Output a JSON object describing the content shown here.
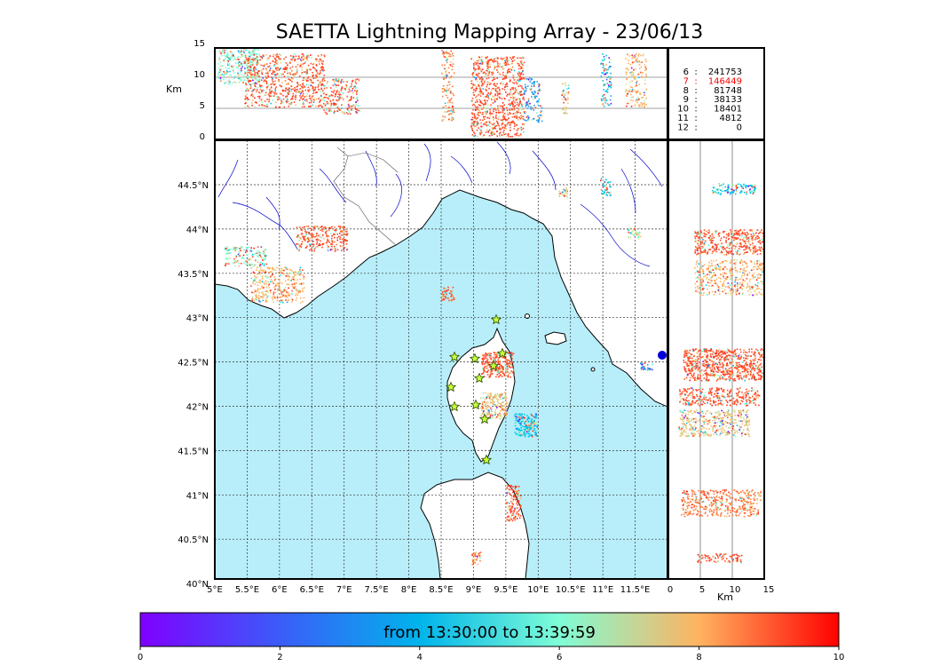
{
  "title": "SAETTA Lightning Mapping Array - 23/06/13",
  "altitude_panel": {
    "ylabel": "Km",
    "yticks": [
      "15",
      "10",
      "5",
      "0"
    ]
  },
  "side_panel": {
    "xlabel": "Km",
    "xticks": [
      "0",
      "5",
      "10",
      "15"
    ]
  },
  "map": {
    "lat_labels": [
      "44.5°N",
      "44°N",
      "43.5°N",
      "43°N",
      "42.5°N",
      "42°N",
      "41.5°N",
      "41°N",
      "40.5°N",
      "40°N"
    ],
    "lon_labels": [
      "5°E",
      "5.5°E",
      "6°E",
      "6.5°E",
      "7°E",
      "7.5°E",
      "8°E",
      "8.5°E",
      "9°E",
      "9.5°E",
      "10°E",
      "10.5°E",
      "11°E",
      "11.5°E"
    ],
    "sea_color": "#b8eefa",
    "land_color": "#ffffff",
    "river_color": "#0000cc"
  },
  "station_counts": [
    {
      "station": "6",
      "count": "241753",
      "highlight": false
    },
    {
      "station": "7",
      "count": "146449",
      "highlight": true
    },
    {
      "station": "8",
      "count": "81748",
      "highlight": false
    },
    {
      "station": "9",
      "count": "38133",
      "highlight": false
    },
    {
      "station": "10",
      "count": "18401",
      "highlight": false
    },
    {
      "station": "11",
      "count": "4812",
      "highlight": false
    },
    {
      "station": "12",
      "count": "0",
      "highlight": false
    }
  ],
  "colorbar": {
    "title": "from 13:30:00 to 13:39:59",
    "ticks": [
      "0",
      "2",
      "4",
      "6",
      "8",
      "10"
    ],
    "colors": [
      "#7f00ff",
      "#3b5cf9",
      "#00b4eb",
      "#7ffdd6",
      "#ffb360",
      "#ff0000"
    ]
  }
}
